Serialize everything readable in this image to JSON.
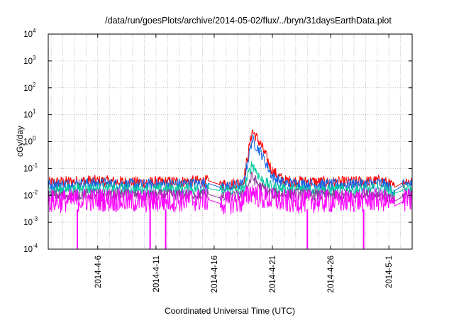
{
  "chart_data": {
    "type": "line",
    "title": "/data/run/goesPlots/archive/2014-05-02/flux/../bryn/31daysEarthData.plot",
    "xlabel": "Coordinated Universal Time (UTC)",
    "ylabel": "cGy/day",
    "x_scale": "date",
    "xlim": [
      "2014-04-01T18:00",
      "2014-05-03T00:00"
    ],
    "xticks": [
      "2014-4-6",
      "2014-4-11",
      "2014-4-16",
      "2014-4-21",
      "2014-4-26",
      "2014-5-1"
    ],
    "xtick_dates": [
      "2014-04-06",
      "2014-04-11",
      "2014-04-16",
      "2014-04-21",
      "2014-04-26",
      "2014-05-01"
    ],
    "y_scale": "log",
    "ylim": [
      0.0001,
      10000
    ],
    "yticks": [
      {
        "base": "10",
        "exp": "-4",
        "value": 0.0001
      },
      {
        "base": "10",
        "exp": "-3",
        "value": 0.001
      },
      {
        "base": "10",
        "exp": "-2",
        "value": 0.01
      },
      {
        "base": "10",
        "exp": "-1",
        "value": 0.1
      },
      {
        "base": "10",
        "exp": "0",
        "value": 1
      },
      {
        "base": "10",
        "exp": "1",
        "value": 10
      },
      {
        "base": "10",
        "exp": "2",
        "value": 100
      },
      {
        "base": "10",
        "exp": "3",
        "value": 1000
      },
      {
        "base": "10",
        "exp": "4",
        "value": 10000
      }
    ],
    "grid": true,
    "legend": "none",
    "series": [
      {
        "color": "#ff0000",
        "points": [
          [
            "2014-04-01T18:00",
            0.03
          ],
          [
            "2014-04-05T12:00",
            0.035
          ],
          [
            "2014-04-10T00:00",
            0.03
          ],
          [
            "2014-04-15T12:00",
            0.035
          ],
          [
            "2014-04-16T12:00",
            0.025
          ],
          [
            "2014-04-18T12:00",
            0.03
          ],
          [
            "2014-04-19T06:00",
            2.5
          ],
          [
            "2014-04-20T00:00",
            0.8
          ],
          [
            "2014-04-21T00:00",
            0.08
          ],
          [
            "2014-04-22T00:00",
            0.035
          ],
          [
            "2014-04-26T00:00",
            0.03
          ],
          [
            "2014-04-30T12:00",
            0.035
          ],
          [
            "2014-05-01T12:00",
            0.02
          ],
          [
            "2014-05-02T12:00",
            0.035
          ],
          [
            "2014-05-03T00:00",
            0.03
          ]
        ]
      },
      {
        "color": "#1565e6",
        "points": [
          [
            "2014-04-01T18:00",
            0.025
          ],
          [
            "2014-04-05T12:00",
            0.028
          ],
          [
            "2014-04-10T00:00",
            0.025
          ],
          [
            "2014-04-15T12:00",
            0.028
          ],
          [
            "2014-04-16T12:00",
            0.02
          ],
          [
            "2014-04-18T12:00",
            0.025
          ],
          [
            "2014-04-19T06:00",
            1.2
          ],
          [
            "2014-04-20T00:00",
            0.4
          ],
          [
            "2014-04-21T00:00",
            0.05
          ],
          [
            "2014-04-22T00:00",
            0.028
          ],
          [
            "2014-04-26T00:00",
            0.025
          ],
          [
            "2014-04-30T12:00",
            0.028
          ],
          [
            "2014-05-01T12:00",
            0.015
          ],
          [
            "2014-05-02T12:00",
            0.028
          ],
          [
            "2014-05-03T00:00",
            0.025
          ]
        ]
      },
      {
        "color": "#00c8a0",
        "points": [
          [
            "2014-04-01T18:00",
            0.016
          ],
          [
            "2014-04-05T12:00",
            0.018
          ],
          [
            "2014-04-10T00:00",
            0.016
          ],
          [
            "2014-04-15T12:00",
            0.018
          ],
          [
            "2014-04-16T12:00",
            0.015
          ],
          [
            "2014-04-18T12:00",
            0.016
          ],
          [
            "2014-04-19T06:00",
            0.15
          ],
          [
            "2014-04-20T00:00",
            0.04
          ],
          [
            "2014-04-21T00:00",
            0.02
          ],
          [
            "2014-04-22T00:00",
            0.017
          ],
          [
            "2014-04-26T00:00",
            0.016
          ],
          [
            "2014-04-30T12:00",
            0.017
          ],
          [
            "2014-05-01T12:00",
            0.012
          ],
          [
            "2014-05-02T12:00",
            0.017
          ],
          [
            "2014-05-03T00:00",
            0.016
          ]
        ]
      },
      {
        "color": "#8a3a9a",
        "points": [
          [
            "2014-04-01T18:00",
            0.01
          ],
          [
            "2014-04-05T12:00",
            0.011
          ],
          [
            "2014-04-10T00:00",
            0.01
          ],
          [
            "2014-04-15T12:00",
            0.011
          ],
          [
            "2014-04-16T12:00",
            0.008
          ],
          [
            "2014-04-18T12:00",
            0.01
          ],
          [
            "2014-04-19T06:00",
            0.05
          ],
          [
            "2014-04-20T00:00",
            0.02
          ],
          [
            "2014-04-21T00:00",
            0.012
          ],
          [
            "2014-04-22T00:00",
            0.011
          ],
          [
            "2014-04-26T00:00",
            0.01
          ],
          [
            "2014-04-30T12:00",
            0.011
          ],
          [
            "2014-05-01T12:00",
            0.006
          ],
          [
            "2014-05-02T12:00",
            0.011
          ],
          [
            "2014-05-03T00:00",
            0.01
          ]
        ]
      },
      {
        "color": "#ff00ff",
        "points": [
          [
            "2014-04-01T18:00",
            0.006
          ],
          [
            "2014-04-05T12:00",
            0.007
          ],
          [
            "2014-04-10T00:00",
            0.006
          ],
          [
            "2014-04-15T12:00",
            0.007
          ],
          [
            "2014-04-16T12:00",
            0.005
          ],
          [
            "2014-04-18T12:00",
            0.006
          ],
          [
            "2014-04-19T06:00",
            0.015
          ],
          [
            "2014-04-20T00:00",
            0.008
          ],
          [
            "2014-04-21T00:00",
            0.007
          ],
          [
            "2014-04-22T00:00",
            0.006
          ],
          [
            "2014-04-26T00:00",
            0.006
          ],
          [
            "2014-04-30T12:00",
            0.007
          ],
          [
            "2014-05-01T12:00",
            0.004
          ],
          [
            "2014-05-02T12:00",
            0.007
          ],
          [
            "2014-05-03T00:00",
            0.006
          ]
        ]
      }
    ],
    "dropouts": [
      "2014-04-04T06:00",
      "2014-04-10T12:00",
      "2014-04-11T20:00",
      "2014-04-24T00:00",
      "2014-04-28T20:00"
    ],
    "dropout_value": 0.0001
  }
}
